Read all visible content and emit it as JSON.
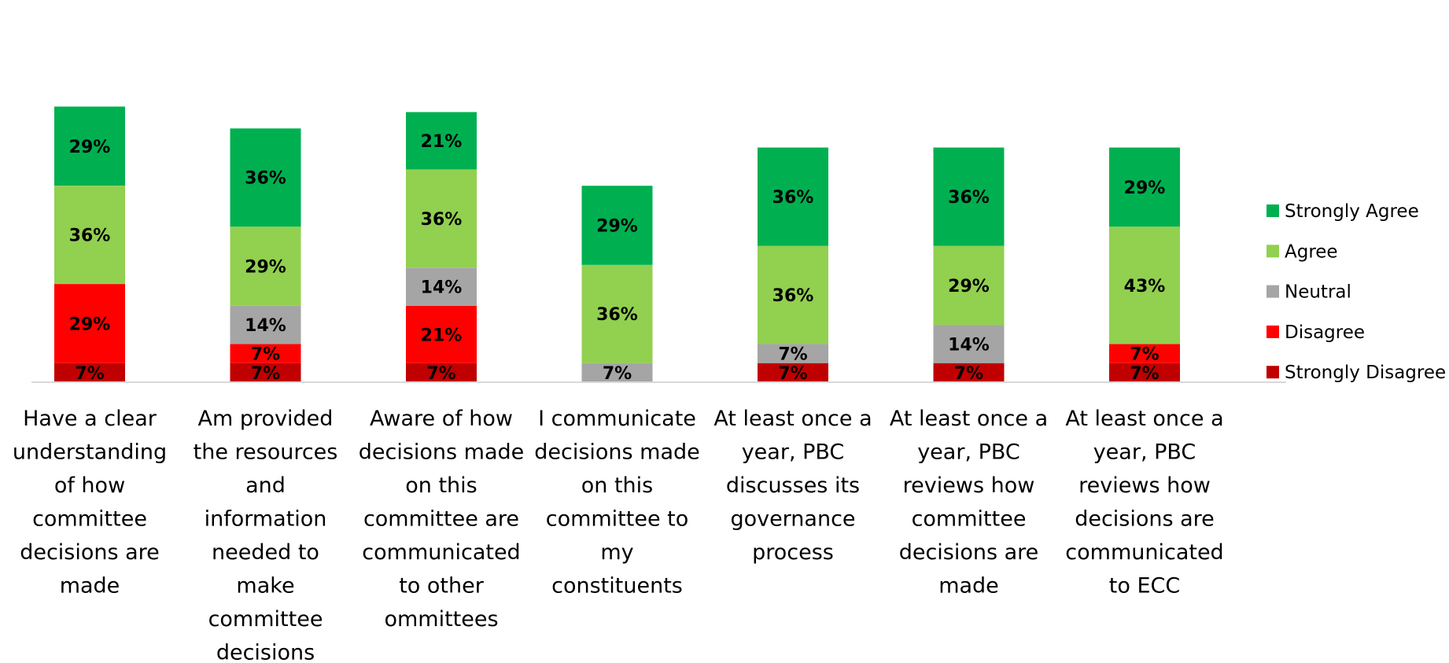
{
  "chart_data": {
    "type": "bar",
    "stacked": true,
    "categories": [
      "Have a clear understanding of how committee decisions are made",
      "Am provided the resources and information needed to make committee decisions",
      "Aware of how decisions made on this committee are communicated to other ommittees",
      "I communicate decisions made on this committee to my constituents",
      "At least once a year, PBC discusses its governance process",
      "At least once a year, PBC reviews how committee decisions are made",
      "At least once a year, PBC reviews how decisions are communicated to ECC"
    ],
    "category_lines": [
      [
        "Have a clear",
        "understanding",
        "of how",
        "committee",
        "decisions are",
        "made"
      ],
      [
        "Am provided",
        "the resources",
        "and",
        "information",
        "needed to",
        "make",
        "committee",
        "decisions"
      ],
      [
        "Aware of how",
        "decisions made",
        "on this",
        "committee are",
        "communicated",
        "to other",
        "ommittees"
      ],
      [
        "I communicate",
        "decisions made",
        "on this",
        "committee to",
        "my",
        "constituents"
      ],
      [
        "At least once a",
        "year, PBC",
        "discusses its",
        "governance",
        "process"
      ],
      [
        "At least once a",
        "year, PBC",
        "reviews how",
        "committee",
        "decisions are",
        "made"
      ],
      [
        "At least once a",
        "year, PBC",
        "reviews how",
        "decisions are",
        "communicated",
        "to ECC"
      ]
    ],
    "series": [
      {
        "name": "Strongly Disagree",
        "color": "#C00000",
        "values": [
          7,
          7,
          7,
          0,
          7,
          7,
          7
        ]
      },
      {
        "name": "Disagree",
        "color": "#FF0000",
        "values": [
          29,
          7,
          21,
          0,
          0,
          0,
          7
        ]
      },
      {
        "name": "Neutral",
        "color": "#A5A5A5",
        "values": [
          0,
          14,
          14,
          7,
          7,
          14,
          0
        ]
      },
      {
        "name": "Agree",
        "color": "#92D050",
        "values": [
          36,
          29,
          36,
          36,
          36,
          29,
          43
        ]
      },
      {
        "name": "Strongly Agree",
        "color": "#00B050",
        "values": [
          29,
          36,
          21,
          29,
          36,
          36,
          29
        ]
      }
    ],
    "value_suffix": "%",
    "legend_position": "right",
    "legend_order": [
      "Strongly Agree",
      "Agree",
      "Neutral",
      "Disagree",
      "Strongly Disagree"
    ],
    "grid": false,
    "ylim": [
      0,
      100
    ],
    "title": "",
    "xlabel": "",
    "ylabel": ""
  }
}
